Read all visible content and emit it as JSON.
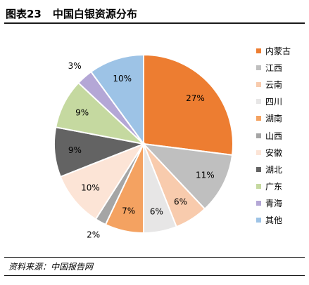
{
  "figure": {
    "title_num": "图表23",
    "title_text": "中国白银资源分布",
    "source": "资料来源：中国报告网"
  },
  "chart_data": {
    "type": "pie",
    "title": "中国白银资源分布",
    "start_angle_deg": 0,
    "direction": "clockwise",
    "legend_position": "right",
    "slices": [
      {
        "label": "内蒙古",
        "value": 27,
        "display": "27%",
        "color": "#ed7d31"
      },
      {
        "label": "江西",
        "value": 11,
        "display": "11%",
        "color": "#bfbfbf"
      },
      {
        "label": "云南",
        "value": 6,
        "display": "6%",
        "color": "#f8cbad"
      },
      {
        "label": "四川",
        "value": 6,
        "display": "6%",
        "color": "#e7e6e6"
      },
      {
        "label": "湖南",
        "value": 7,
        "display": "7%",
        "color": "#f4a261"
      },
      {
        "label": "山西",
        "value": 2,
        "display": "2%",
        "color": "#a5a5a5"
      },
      {
        "label": "安徽",
        "value": 10,
        "display": "10%",
        "color": "#fce4d6"
      },
      {
        "label": "湖北",
        "value": 9,
        "display": "9%",
        "color": "#636363"
      },
      {
        "label": "广东",
        "value": 9,
        "display": "9%",
        "color": "#c5d9a0"
      },
      {
        "label": "青海",
        "value": 3,
        "display": "3%",
        "color": "#b4a7d6"
      },
      {
        "label": "其他",
        "value": 10,
        "display": "10%",
        "color": "#9dc3e6"
      }
    ]
  }
}
